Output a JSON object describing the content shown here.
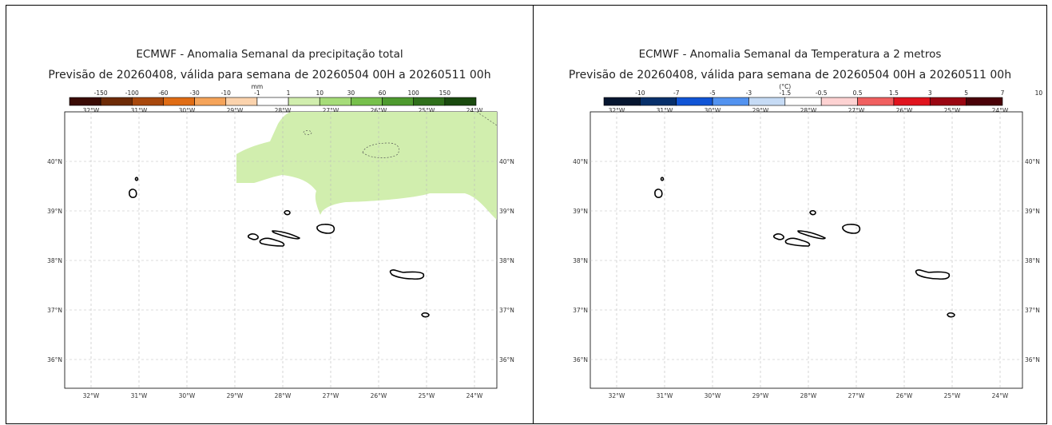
{
  "panels": [
    {
      "id": "precip",
      "title": "ECMWF - Anomalia Semanal da precipitação total",
      "subtitle": "Previsão de 20260408, válida para semana de 20260504 00H a 20260511 00h",
      "colorbar": {
        "unit": "mm",
        "colors": [
          "#3a0b05",
          "#6e2b07",
          "#a8480d",
          "#e06d15",
          "#f5a45a",
          "#fbd3ad",
          "#ffffff",
          "#d1eeae",
          "#a6dc79",
          "#77c04c",
          "#4e9a2f",
          "#2f6f1b",
          "#1a4a0f"
        ],
        "labels": [
          "-150",
          "-100",
          "-60",
          "-30",
          "-10",
          "-1",
          "1",
          "10",
          "30",
          "60",
          "100",
          "150"
        ]
      },
      "lon_ticks": [
        "32°W",
        "31°W",
        "30°W",
        "29°W",
        "28°W",
        "27°W",
        "26°W",
        "25°W",
        "24°W"
      ],
      "lat_ticks": [
        "40°N",
        "39°N",
        "38°N",
        "37°N",
        "36°N"
      ],
      "anomaly_fill": "#d1eeae"
    },
    {
      "id": "temp",
      "title": "ECMWF - Anomalia Semanal da Temperatura a 2 metros",
      "subtitle": "Previsão de 20260408, válida para semana de 20260504 00H a 20260511 00h",
      "colorbar": {
        "unit": "(°C)",
        "colors": [
          "#061630",
          "#08306b",
          "#1155d6",
          "#5393f0",
          "#c6dbf5",
          "#ffffff",
          "#fdd2d2",
          "#f06060",
          "#e0141e",
          "#9a0612",
          "#4a0208"
        ],
        "labels": [
          "-10",
          "-7",
          "-5",
          "-3",
          "-1.5",
          "-0.5",
          "0.5",
          "1.5",
          "3",
          "5",
          "7",
          "10"
        ]
      },
      "lon_ticks": [
        "32°W",
        "31°W",
        "30°W",
        "29°W",
        "28°W",
        "27°W",
        "26°W",
        "25°W",
        "24°W"
      ],
      "lat_ticks": [
        "40°N",
        "39°N",
        "38°N",
        "37°N",
        "36°N"
      ]
    }
  ]
}
